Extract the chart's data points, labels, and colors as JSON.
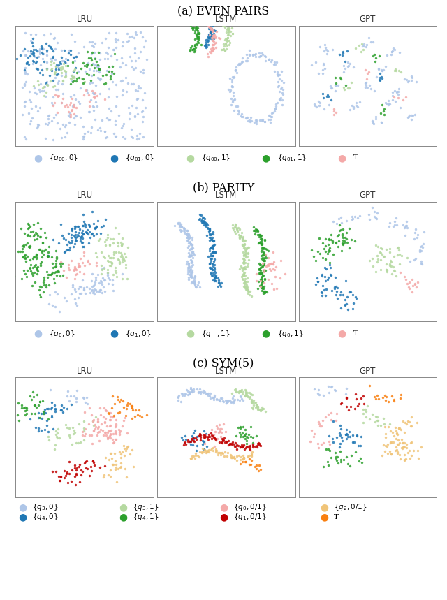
{
  "fig_width": 6.4,
  "fig_height": 8.59,
  "dpi": 100,
  "bg_color": "#ffffff",
  "colors_a": [
    "#aec6e8",
    "#1f77b4",
    "#b5d9a0",
    "#2ca02c",
    "#f4a9a8"
  ],
  "colors_b": [
    "#aec6e8",
    "#1f77b4",
    "#b5d9a0",
    "#2ca02c",
    "#f4a9a8"
  ],
  "colors_c": [
    "#aec6e8",
    "#1f77b4",
    "#b5d9a0",
    "#2ca02c",
    "#f4a9a8",
    "#c00000",
    "#f0c478",
    "#f97f0f"
  ],
  "legend_a": [
    {
      "label": "$\\{q_{00},0\\}$",
      "color": "#aec6e8"
    },
    {
      "label": "$\\{q_{01},0\\}$",
      "color": "#1f77b4"
    },
    {
      "label": "$\\{q_{00},1\\}$",
      "color": "#b5d9a0"
    },
    {
      "label": "$\\{q_{01},1\\}$",
      "color": "#2ca02c"
    },
    {
      "label": "T",
      "color": "#f4a9a8"
    }
  ],
  "legend_b": [
    {
      "label": "$\\{q_0,0\\}$",
      "color": "#aec6e8"
    },
    {
      "label": "$\\{q_1,0\\}$",
      "color": "#1f77b4"
    },
    {
      "label": "$\\{q_-,1\\}$",
      "color": "#b5d9a0"
    },
    {
      "label": "$\\{q_0,1\\}$",
      "color": "#2ca02c"
    },
    {
      "label": "T",
      "color": "#f4a9a8"
    }
  ],
  "legend_c_row1": [
    {
      "label": "$\\{q_3,0\\}$",
      "color": "#aec6e8"
    },
    {
      "label": "$\\{q_3,1\\}$",
      "color": "#b5d9a0"
    },
    {
      "label": "$\\{q_0,0/1\\}$",
      "color": "#f4a9a8"
    },
    {
      "label": "$\\{q_2,0/1\\}$",
      "color": "#f0c478"
    }
  ],
  "legend_c_row2": [
    {
      "label": "$\\{q_4,0\\}$",
      "color": "#1f77b4"
    },
    {
      "label": "$\\{q_4,1\\}$",
      "color": "#2ca02c"
    },
    {
      "label": "$\\{q_1,0/1\\}$",
      "color": "#c00000"
    },
    {
      "label": "T",
      "color": "#f97f0f"
    }
  ]
}
